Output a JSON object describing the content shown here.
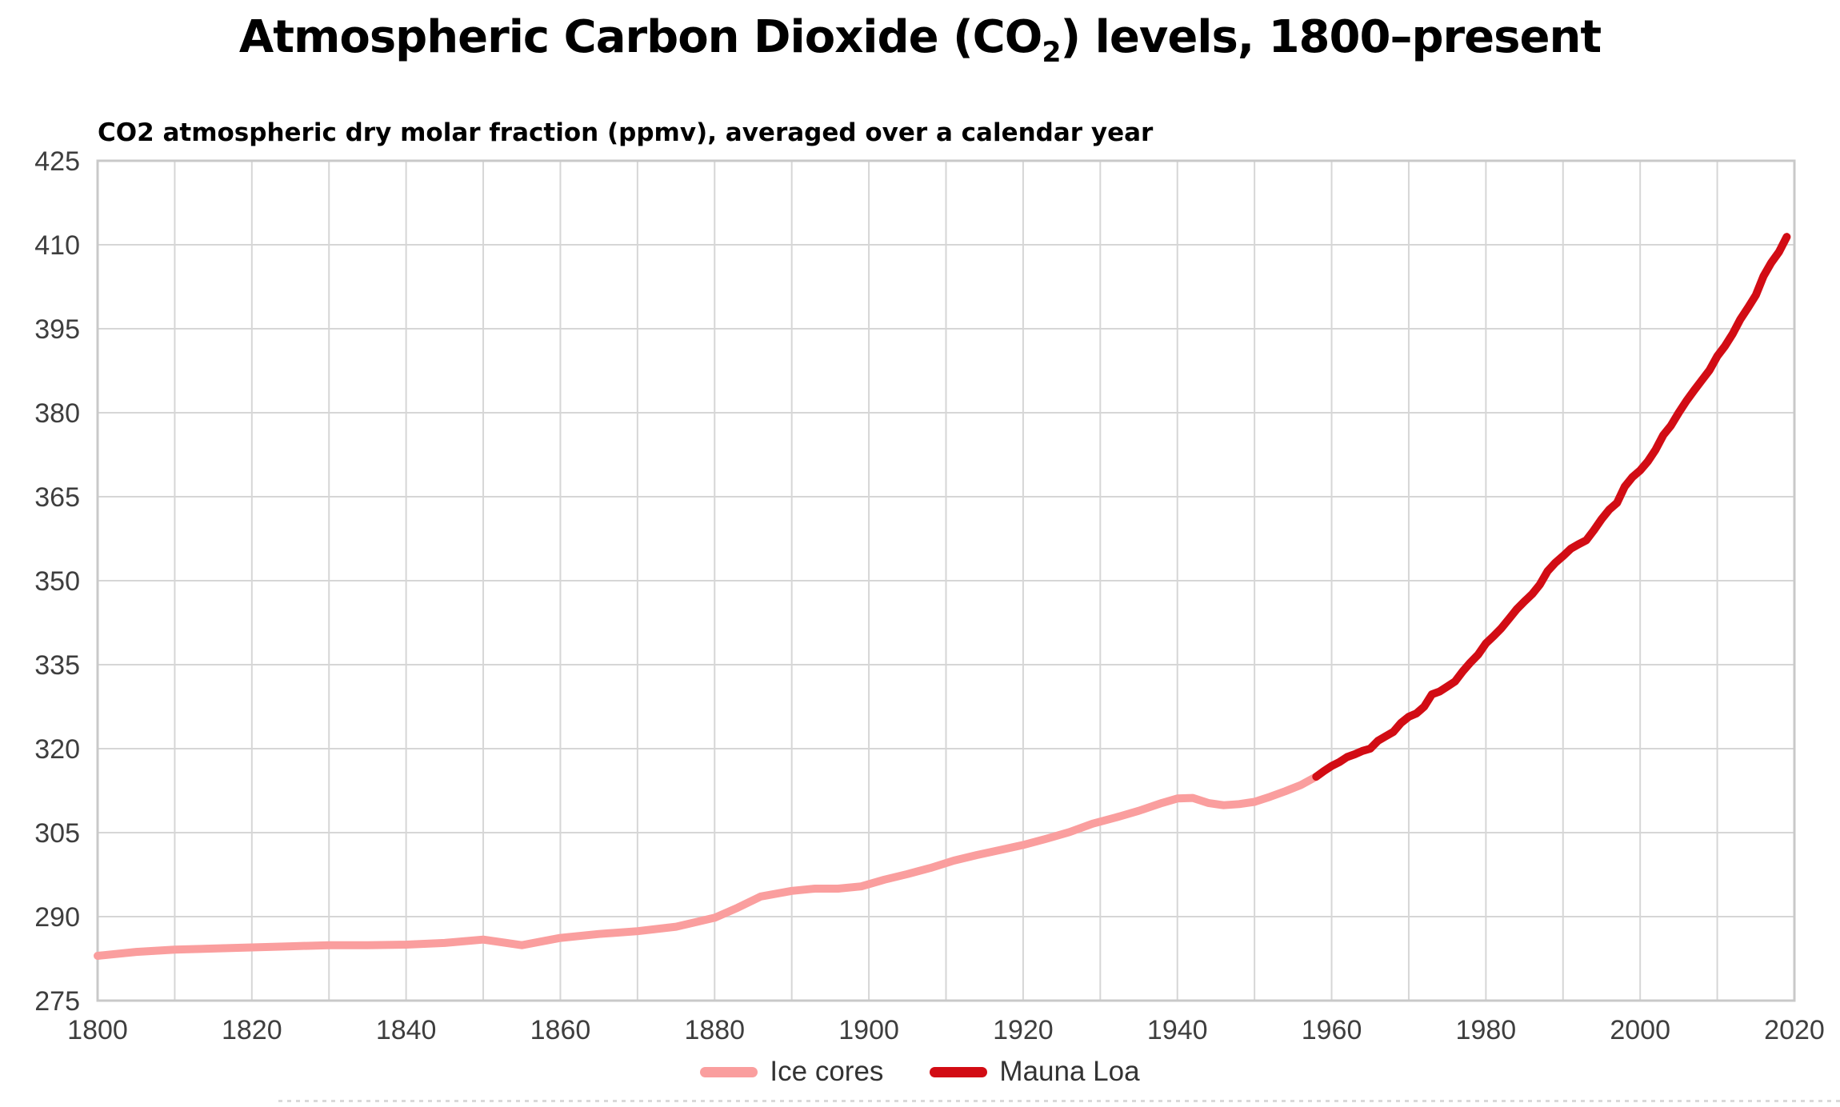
{
  "figure": {
    "title": {
      "prefix": "Atmospheric Carbon Dioxide (CO",
      "subscript": "2",
      "suffix": ") levels, 1800–present"
    },
    "subtitle": "CO2 atmospheric dry molar fraction (ppmv), averaged over a calendar year"
  },
  "legend": {
    "position": "bottom-center",
    "items": [
      {
        "label": "Ice cores",
        "color": "#fa9e9e"
      },
      {
        "label": "Mauna Loa",
        "color": "#d20c14"
      }
    ]
  },
  "style": {
    "grid_color": "#d6d6d6",
    "border_color": "#c9c9c9",
    "tick_label_color": "#3e3e3e",
    "legend_text_color": "#333333",
    "line_width": 10,
    "background": "#ffffff"
  },
  "chart_data": {
    "type": "line",
    "title": "Atmospheric Carbon Dioxide (CO2) levels, 1800–present",
    "subtitle": "CO2 atmospheric dry molar fraction (ppmv), averaged over a calendar year",
    "xlabel": "",
    "ylabel": "",
    "xlim": [
      1800,
      2020
    ],
    "ylim": [
      275,
      425
    ],
    "grid": true,
    "x_grid_step": 10,
    "y_grid_step": 15,
    "x_tick_labels": [
      1800,
      1820,
      1840,
      1860,
      1880,
      1900,
      1920,
      1940,
      1960,
      1980,
      2000,
      2020
    ],
    "y_tick_labels": [
      275,
      290,
      305,
      320,
      335,
      350,
      365,
      380,
      395,
      410,
      425
    ],
    "legend_position": "bottom",
    "series": [
      {
        "name": "Ice cores",
        "color": "#fa9e9e",
        "points": [
          [
            1800,
            283.0
          ],
          [
            1805,
            283.7
          ],
          [
            1810,
            284.1
          ],
          [
            1815,
            284.3
          ],
          [
            1820,
            284.5
          ],
          [
            1825,
            284.7
          ],
          [
            1830,
            284.9
          ],
          [
            1835,
            284.9
          ],
          [
            1840,
            285.0
          ],
          [
            1845,
            285.3
          ],
          [
            1850,
            285.9
          ],
          [
            1855,
            284.9
          ],
          [
            1860,
            286.2
          ],
          [
            1865,
            286.9
          ],
          [
            1870,
            287.4
          ],
          [
            1875,
            288.2
          ],
          [
            1880,
            289.8
          ],
          [
            1883,
            291.6
          ],
          [
            1886,
            293.6
          ],
          [
            1890,
            294.6
          ],
          [
            1893,
            295.0
          ],
          [
            1896,
            295.0
          ],
          [
            1899,
            295.4
          ],
          [
            1902,
            296.6
          ],
          [
            1905,
            297.6
          ],
          [
            1908,
            298.7
          ],
          [
            1911,
            300.0
          ],
          [
            1914,
            301.0
          ],
          [
            1917,
            301.9
          ],
          [
            1920,
            302.8
          ],
          [
            1923,
            303.9
          ],
          [
            1926,
            305.1
          ],
          [
            1929,
            306.6
          ],
          [
            1932,
            307.7
          ],
          [
            1935,
            308.9
          ],
          [
            1938,
            310.3
          ],
          [
            1940,
            311.1
          ],
          [
            1942,
            311.2
          ],
          [
            1944,
            310.3
          ],
          [
            1946,
            309.9
          ],
          [
            1948,
            310.1
          ],
          [
            1950,
            310.5
          ],
          [
            1952,
            311.4
          ],
          [
            1954,
            312.4
          ],
          [
            1956,
            313.5
          ],
          [
            1958,
            315.0
          ]
        ]
      },
      {
        "name": "Mauna Loa",
        "color": "#d20c14",
        "points": [
          [
            1958,
            315.0
          ],
          [
            1959,
            316.0
          ],
          [
            1960,
            316.9
          ],
          [
            1961,
            317.6
          ],
          [
            1962,
            318.5
          ],
          [
            1963,
            319.0
          ],
          [
            1964,
            319.6
          ],
          [
            1965,
            320.0
          ],
          [
            1966,
            321.4
          ],
          [
            1967,
            322.2
          ],
          [
            1968,
            323.0
          ],
          [
            1969,
            324.6
          ],
          [
            1970,
            325.7
          ],
          [
            1971,
            326.3
          ],
          [
            1972,
            327.5
          ],
          [
            1973,
            329.7
          ],
          [
            1974,
            330.2
          ],
          [
            1975,
            331.1
          ],
          [
            1976,
            332.0
          ],
          [
            1977,
            333.8
          ],
          [
            1978,
            335.4
          ],
          [
            1979,
            336.8
          ],
          [
            1980,
            338.8
          ],
          [
            1981,
            340.1
          ],
          [
            1982,
            341.5
          ],
          [
            1983,
            343.2
          ],
          [
            1984,
            344.9
          ],
          [
            1985,
            346.3
          ],
          [
            1986,
            347.6
          ],
          [
            1987,
            349.3
          ],
          [
            1988,
            351.7
          ],
          [
            1989,
            353.2
          ],
          [
            1990,
            354.4
          ],
          [
            1991,
            355.7
          ],
          [
            1992,
            356.5
          ],
          [
            1993,
            357.2
          ],
          [
            1994,
            359.0
          ],
          [
            1995,
            361.0
          ],
          [
            1996,
            362.7
          ],
          [
            1997,
            363.9
          ],
          [
            1998,
            366.8
          ],
          [
            1999,
            368.5
          ],
          [
            2000,
            369.7
          ],
          [
            2001,
            371.3
          ],
          [
            2002,
            373.4
          ],
          [
            2003,
            376.0
          ],
          [
            2004,
            377.7
          ],
          [
            2005,
            380.0
          ],
          [
            2006,
            382.1
          ],
          [
            2007,
            384.0
          ],
          [
            2008,
            385.8
          ],
          [
            2009,
            387.6
          ],
          [
            2010,
            390.1
          ],
          [
            2011,
            391.9
          ],
          [
            2012,
            394.1
          ],
          [
            2013,
            396.7
          ],
          [
            2014,
            398.8
          ],
          [
            2015,
            401.0
          ],
          [
            2016,
            404.4
          ],
          [
            2017,
            406.8
          ],
          [
            2018,
            408.7
          ],
          [
            2019,
            411.4
          ]
        ]
      }
    ]
  }
}
